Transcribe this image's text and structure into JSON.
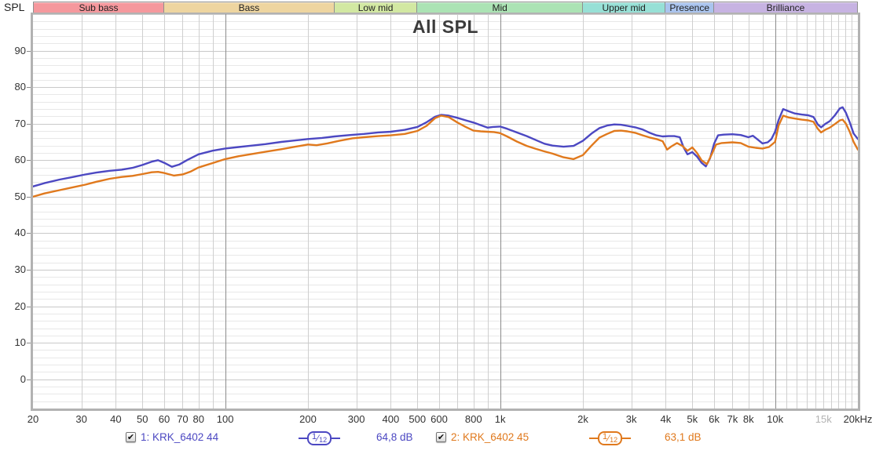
{
  "header": {
    "y_axis_title": "SPL"
  },
  "bands": [
    {
      "label": "Sub bass",
      "fmin": 20,
      "fmax": 60,
      "color": "#f5989d"
    },
    {
      "label": "Bass",
      "fmin": 60,
      "fmax": 250,
      "color": "#eed5a0"
    },
    {
      "label": "Low mid",
      "fmin": 250,
      "fmax": 500,
      "color": "#d2e8a2"
    },
    {
      "label": "Mid",
      "fmin": 500,
      "fmax": 2000,
      "color": "#abe3b4"
    },
    {
      "label": "Upper mid",
      "fmin": 2000,
      "fmax": 4000,
      "color": "#97e0d6"
    },
    {
      "label": "Presence",
      "fmin": 4000,
      "fmax": 6000,
      "color": "#aac4ee"
    },
    {
      "label": "Brilliance",
      "fmin": 6000,
      "fmax": 20000,
      "color": "#c7b3e2"
    }
  ],
  "chart_data": {
    "type": "line",
    "title": "All SPL",
    "x": {
      "scale": "log",
      "min": 20,
      "max": 20000,
      "unit": "Hz",
      "ticks": [
        {
          "f": 20,
          "t": "20"
        },
        {
          "f": 30,
          "t": "30"
        },
        {
          "f": 40,
          "t": "40"
        },
        {
          "f": 50,
          "t": "50"
        },
        {
          "f": 60,
          "t": "60"
        },
        {
          "f": 70,
          "t": "70"
        },
        {
          "f": 80,
          "t": "80"
        },
        {
          "f": 100,
          "t": "100"
        },
        {
          "f": 200,
          "t": "200"
        },
        {
          "f": 300,
          "t": "300"
        },
        {
          "f": 400,
          "t": "400"
        },
        {
          "f": 500,
          "t": "500"
        },
        {
          "f": 600,
          "t": "600"
        },
        {
          "f": 800,
          "t": "800"
        },
        {
          "f": 1000,
          "t": "1k"
        },
        {
          "f": 2000,
          "t": "2k"
        },
        {
          "f": 3000,
          "t": "3k"
        },
        {
          "f": 4000,
          "t": "4k"
        },
        {
          "f": 5000,
          "t": "5k"
        },
        {
          "f": 6000,
          "t": "6k"
        },
        {
          "f": 7000,
          "t": "7k"
        },
        {
          "f": 8000,
          "t": "8k"
        },
        {
          "f": 10000,
          "t": "10k"
        },
        {
          "f": 15000,
          "t": "15k",
          "muted": true
        },
        {
          "f": 20000,
          "t": "20kHz"
        }
      ],
      "minor_gridlines": [
        30,
        40,
        50,
        60,
        70,
        80,
        90,
        200,
        300,
        400,
        500,
        600,
        700,
        800,
        900,
        2000,
        3000,
        4000,
        5000,
        6000,
        7000,
        8000,
        9000,
        11000,
        12000,
        13000,
        14000,
        15000,
        16000,
        17000,
        18000,
        19000
      ],
      "decade_gridlines": [
        100,
        1000,
        10000
      ]
    },
    "y": {
      "label": "SPL",
      "min": -8,
      "max": 100,
      "major_step": 10,
      "minor_step": 2,
      "tick_labels": [
        0,
        10,
        20,
        30,
        40,
        50,
        60,
        70,
        80,
        90
      ],
      "unit": "dB"
    },
    "grid_colors": {
      "minor_h": "#e8e8e8",
      "major_h": "#c9c9c9",
      "minor_v": "#cfcfcf",
      "decade_v": "#8c8c8c"
    },
    "series": [
      {
        "name": "1: KRK_6402 44",
        "color": "#4c48c2",
        "smoothing": "1/12",
        "value": "64,8 dB",
        "points": [
          [
            20,
            52.8
          ],
          [
            22,
            53.7
          ],
          [
            25,
            54.7
          ],
          [
            28,
            55.4
          ],
          [
            31,
            56.1
          ],
          [
            34,
            56.6
          ],
          [
            38,
            57.1
          ],
          [
            42,
            57.4
          ],
          [
            46,
            57.9
          ],
          [
            50,
            58.7
          ],
          [
            54,
            59.6
          ],
          [
            57,
            60.0
          ],
          [
            60,
            59.3
          ],
          [
            64,
            58.2
          ],
          [
            68,
            58.8
          ],
          [
            73,
            60.1
          ],
          [
            80,
            61.6
          ],
          [
            90,
            62.6
          ],
          [
            100,
            63.2
          ],
          [
            112,
            63.6
          ],
          [
            125,
            64.0
          ],
          [
            140,
            64.4
          ],
          [
            160,
            65.0
          ],
          [
            180,
            65.4
          ],
          [
            200,
            65.8
          ],
          [
            225,
            66.1
          ],
          [
            250,
            66.5
          ],
          [
            285,
            66.9
          ],
          [
            320,
            67.2
          ],
          [
            360,
            67.6
          ],
          [
            400,
            67.8
          ],
          [
            450,
            68.3
          ],
          [
            500,
            69.1
          ],
          [
            540,
            70.4
          ],
          [
            580,
            71.9
          ],
          [
            610,
            72.4
          ],
          [
            650,
            72.2
          ],
          [
            700,
            71.6
          ],
          [
            750,
            70.9
          ],
          [
            800,
            70.3
          ],
          [
            850,
            69.6
          ],
          [
            900,
            68.9
          ],
          [
            940,
            69.1
          ],
          [
            1000,
            69.2
          ],
          [
            1060,
            68.6
          ],
          [
            1150,
            67.6
          ],
          [
            1250,
            66.6
          ],
          [
            1350,
            65.5
          ],
          [
            1450,
            64.5
          ],
          [
            1550,
            64.0
          ],
          [
            1700,
            63.7
          ],
          [
            1850,
            63.9
          ],
          [
            2000,
            65.3
          ],
          [
            2150,
            67.3
          ],
          [
            2300,
            68.8
          ],
          [
            2450,
            69.5
          ],
          [
            2600,
            69.8
          ],
          [
            2750,
            69.7
          ],
          [
            2900,
            69.4
          ],
          [
            3100,
            69.0
          ],
          [
            3300,
            68.4
          ],
          [
            3500,
            67.5
          ],
          [
            3700,
            66.8
          ],
          [
            3900,
            66.5
          ],
          [
            4100,
            66.6
          ],
          [
            4300,
            66.6
          ],
          [
            4500,
            66.3
          ],
          [
            4650,
            63.5
          ],
          [
            4800,
            61.6
          ],
          [
            5000,
            62.2
          ],
          [
            5200,
            61.0
          ],
          [
            5400,
            59.3
          ],
          [
            5600,
            58.3
          ],
          [
            5800,
            60.5
          ],
          [
            6000,
            64.5
          ],
          [
            6200,
            66.8
          ],
          [
            6500,
            67.0
          ],
          [
            7000,
            67.1
          ],
          [
            7500,
            66.9
          ],
          [
            8000,
            66.3
          ],
          [
            8300,
            66.7
          ],
          [
            8600,
            65.8
          ],
          [
            9000,
            64.6
          ],
          [
            9400,
            64.9
          ],
          [
            9700,
            65.8
          ],
          [
            10000,
            67.8
          ],
          [
            10300,
            71.0
          ],
          [
            10700,
            74.0
          ],
          [
            11200,
            73.4
          ],
          [
            11800,
            72.8
          ],
          [
            12500,
            72.5
          ],
          [
            13200,
            72.3
          ],
          [
            13800,
            71.8
          ],
          [
            14300,
            69.8
          ],
          [
            14700,
            69.0
          ],
          [
            15200,
            69.9
          ],
          [
            15800,
            70.7
          ],
          [
            16500,
            72.3
          ],
          [
            17200,
            74.2
          ],
          [
            17600,
            74.5
          ],
          [
            18100,
            73.0
          ],
          [
            18700,
            70.3
          ],
          [
            19300,
            67.3
          ],
          [
            20000,
            65.8
          ]
        ]
      },
      {
        "name": "2: KRK_6402 45",
        "color": "#e0791d",
        "smoothing": "1/12",
        "value": "63,1 dB",
        "points": [
          [
            20,
            50.0
          ],
          [
            22,
            50.9
          ],
          [
            25,
            51.8
          ],
          [
            28,
            52.6
          ],
          [
            31,
            53.3
          ],
          [
            34,
            54.1
          ],
          [
            38,
            54.9
          ],
          [
            42,
            55.4
          ],
          [
            46,
            55.7
          ],
          [
            50,
            56.2
          ],
          [
            54,
            56.7
          ],
          [
            57,
            56.8
          ],
          [
            60,
            56.5
          ],
          [
            65,
            55.8
          ],
          [
            70,
            56.1
          ],
          [
            75,
            56.9
          ],
          [
            80,
            58.0
          ],
          [
            90,
            59.2
          ],
          [
            100,
            60.3
          ],
          [
            112,
            61.1
          ],
          [
            125,
            61.7
          ],
          [
            140,
            62.3
          ],
          [
            160,
            63.0
          ],
          [
            180,
            63.7
          ],
          [
            200,
            64.3
          ],
          [
            215,
            64.1
          ],
          [
            235,
            64.6
          ],
          [
            260,
            65.3
          ],
          [
            290,
            66.0
          ],
          [
            320,
            66.3
          ],
          [
            360,
            66.6
          ],
          [
            400,
            66.8
          ],
          [
            450,
            67.2
          ],
          [
            500,
            68.0
          ],
          [
            540,
            69.4
          ],
          [
            580,
            71.5
          ],
          [
            610,
            72.2
          ],
          [
            650,
            71.8
          ],
          [
            700,
            70.3
          ],
          [
            750,
            69.1
          ],
          [
            800,
            68.1
          ],
          [
            850,
            67.9
          ],
          [
            900,
            67.8
          ],
          [
            950,
            67.7
          ],
          [
            1000,
            67.4
          ],
          [
            1060,
            66.5
          ],
          [
            1150,
            65.1
          ],
          [
            1250,
            63.9
          ],
          [
            1350,
            63.1
          ],
          [
            1450,
            62.4
          ],
          [
            1550,
            61.8
          ],
          [
            1700,
            60.8
          ],
          [
            1850,
            60.3
          ],
          [
            2000,
            61.4
          ],
          [
            2150,
            64.0
          ],
          [
            2300,
            66.2
          ],
          [
            2450,
            67.2
          ],
          [
            2600,
            68.0
          ],
          [
            2750,
            68.1
          ],
          [
            2900,
            67.9
          ],
          [
            3100,
            67.5
          ],
          [
            3300,
            66.8
          ],
          [
            3500,
            66.2
          ],
          [
            3700,
            65.8
          ],
          [
            3900,
            65.2
          ],
          [
            4050,
            62.9
          ],
          [
            4200,
            63.8
          ],
          [
            4400,
            64.7
          ],
          [
            4600,
            63.9
          ],
          [
            4800,
            62.6
          ],
          [
            5000,
            63.5
          ],
          [
            5200,
            62.0
          ],
          [
            5400,
            60.0
          ],
          [
            5650,
            58.9
          ],
          [
            5900,
            61.8
          ],
          [
            6100,
            64.3
          ],
          [
            6400,
            64.7
          ],
          [
            7000,
            64.9
          ],
          [
            7500,
            64.7
          ],
          [
            8000,
            63.7
          ],
          [
            8500,
            63.4
          ],
          [
            9000,
            63.2
          ],
          [
            9500,
            63.6
          ],
          [
            10000,
            65.0
          ],
          [
            10300,
            69.5
          ],
          [
            10700,
            72.2
          ],
          [
            11200,
            71.7
          ],
          [
            11800,
            71.4
          ],
          [
            12500,
            71.1
          ],
          [
            13200,
            70.9
          ],
          [
            13800,
            70.5
          ],
          [
            14300,
            68.6
          ],
          [
            14700,
            67.6
          ],
          [
            15200,
            68.3
          ],
          [
            15800,
            68.9
          ],
          [
            16500,
            69.9
          ],
          [
            17200,
            70.9
          ],
          [
            17600,
            71.1
          ],
          [
            18100,
            70.0
          ],
          [
            18700,
            67.7
          ],
          [
            19300,
            65.0
          ],
          [
            20000,
            62.9
          ]
        ]
      }
    ]
  },
  "legend": {
    "items": [
      {
        "checked": true,
        "check_glyph": "✔",
        "label": "1: KRK_6402 44",
        "smoothing": "1/12",
        "value": "64,8 dB",
        "color": "#4c48c2"
      },
      {
        "checked": true,
        "check_glyph": "✔",
        "label": "2: KRK_6402 45",
        "smoothing": "1/12",
        "value": "63,1 dB",
        "color": "#e0791d"
      }
    ]
  }
}
